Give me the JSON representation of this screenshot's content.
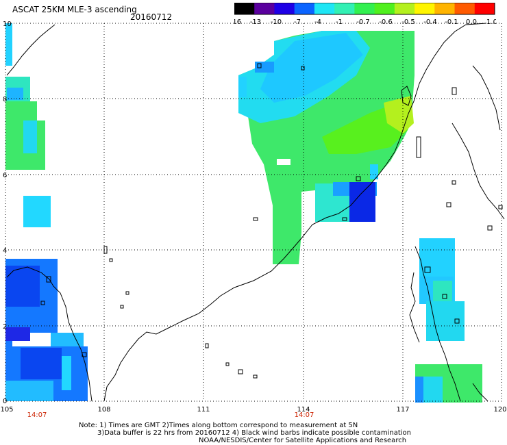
{
  "header": {
    "title": "ASCAT 25KM MLE-3 ascending",
    "date": "20160712"
  },
  "colorbar": {
    "labels": [
      "-16",
      "-13",
      "-10",
      "-7",
      "-4",
      "-1",
      "-0.7",
      "-0.6",
      "-0.5",
      "-0.4",
      "-0.1",
      "0.0",
      "1.0"
    ],
    "colors": [
      "#000000",
      "#5a009e",
      "#1e00e6",
      "#0a64ff",
      "#1ee6f5",
      "#32f0b4",
      "#32f050",
      "#50f01e",
      "#b4f01e",
      "#fff500",
      "#ffb400",
      "#ff5a00",
      "#ff0000"
    ]
  },
  "axes": {
    "lon_labels": [
      "105",
      "108",
      "111",
      "114",
      "117",
      "120"
    ],
    "lat_labels": [
      "10",
      "8",
      "6",
      "4",
      "2",
      "0"
    ],
    "time_labels": [
      "14:07",
      "14:07"
    ],
    "time_color": "#cc2200"
  },
  "notes": [
    "Note: 1) Times are GMT 2)Times along bottom correspond to measurement at 5N",
    "3)Data buffer is 22 hrs from 20160712 4) Black wind barbs indicate possible contamination",
    "NOAA/NESDIS/Center for Satellite Applications and Research"
  ]
}
